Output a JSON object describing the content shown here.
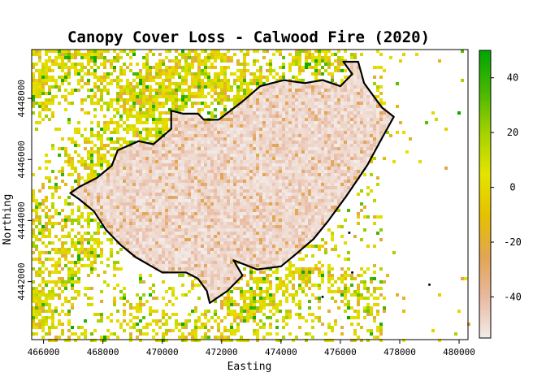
{
  "chart_data": {
    "type": "heatmap",
    "title": "Canopy Cover Loss - Calwood Fire (2020)",
    "xlabel": "Easting",
    "ylabel": "Northing",
    "xlim": [
      465600,
      480300
    ],
    "ylim": [
      4440100,
      4449600
    ],
    "x_ticks": [
      466000,
      468000,
      470000,
      472000,
      474000,
      476000,
      478000,
      480000
    ],
    "y_ticks": [
      4442000,
      4444000,
      4446000,
      4448000
    ],
    "x_tick_labels": [
      "466000",
      "468000",
      "470000",
      "472000",
      "474000",
      "476000",
      "478000",
      "480000"
    ],
    "y_tick_labels": [
      "4442000",
      "4444000",
      "4446000",
      "4448000"
    ],
    "colorbar": {
      "range": [
        -55,
        50
      ],
      "ticks": [
        -40,
        -20,
        0,
        20,
        40
      ],
      "tick_labels": [
        "-40",
        "-20",
        "0",
        "20",
        "40"
      ],
      "colors": [
        "#f2ecea",
        "#e9b9a0",
        "#e2a552",
        "#e6c100",
        "#e3e400",
        "#a5d200",
        "#48b800",
        "#00a600"
      ]
    },
    "fire_perimeter": [
      [
        467200,
        4445100
      ],
      [
        467800,
        4445400
      ],
      [
        468300,
        4445800
      ],
      [
        468500,
        4446300
      ],
      [
        469200,
        4446600
      ],
      [
        469700,
        4446500
      ],
      [
        470300,
        4447000
      ],
      [
        470300,
        4447600
      ],
      [
        470700,
        4447500
      ],
      [
        471200,
        4447500
      ],
      [
        471400,
        4447300
      ],
      [
        471900,
        4447300
      ],
      [
        472700,
        4447900
      ],
      [
        473300,
        4448400
      ],
      [
        474100,
        4448600
      ],
      [
        474800,
        4448500
      ],
      [
        475400,
        4448600
      ],
      [
        476000,
        4448400
      ],
      [
        476400,
        4448800
      ],
      [
        476100,
        4449200
      ],
      [
        476600,
        4449200
      ],
      [
        476800,
        4448500
      ],
      [
        477100,
        4448100
      ],
      [
        477400,
        4447700
      ],
      [
        477800,
        4447400
      ],
      [
        477400,
        4446700
      ],
      [
        476900,
        4445800
      ],
      [
        476200,
        4444800
      ],
      [
        475600,
        4444000
      ],
      [
        475100,
        4443400
      ],
      [
        474500,
        4442900
      ],
      [
        474000,
        4442500
      ],
      [
        473200,
        4442400
      ],
      [
        472400,
        4442700
      ],
      [
        472700,
        4442200
      ],
      [
        472200,
        4441700
      ],
      [
        471600,
        4441300
      ],
      [
        471500,
        4441700
      ],
      [
        471200,
        4442100
      ],
      [
        470800,
        4442300
      ],
      [
        470000,
        4442300
      ],
      [
        469100,
        4442800
      ],
      [
        468600,
        4443200
      ],
      [
        468100,
        4443700
      ],
      [
        467700,
        4444300
      ],
      [
        467200,
        4444700
      ],
      [
        466900,
        4444900
      ]
    ],
    "points": [
      [
        476300,
        4443600
      ],
      [
        476400,
        4442300
      ],
      [
        479000,
        4441900
      ],
      [
        475400,
        4441500
      ]
    ]
  }
}
